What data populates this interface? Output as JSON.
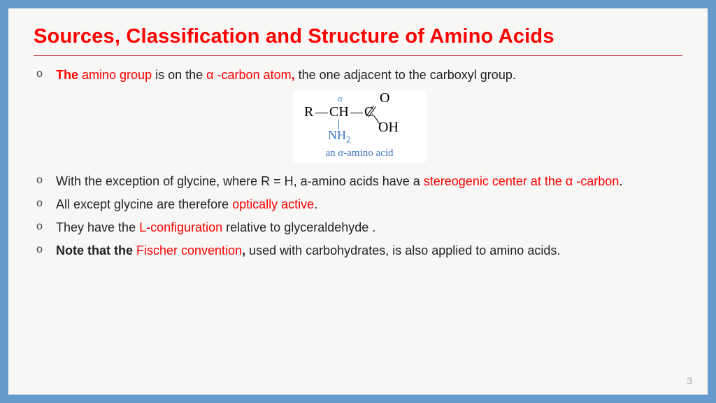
{
  "frame": {
    "border_color": "#6699cc",
    "background": "#f7f7f5"
  },
  "title": {
    "text": "Sources, Classification and Structure of Amino Acids",
    "color": "#ff0000",
    "fontsize": 29,
    "underline_color": "#c44"
  },
  "bullets": [
    {
      "runs": [
        {
          "t": "The ",
          "red": true,
          "bold": true
        },
        {
          "t": "amino group",
          "red": true
        },
        {
          "t": " is on the ",
          "red": false
        },
        {
          "t": "α -carbon atom",
          "red": true
        },
        {
          "t": ",",
          "red": true,
          "bold": true
        },
        {
          "t": " the one adjacent to the carboxyl group.",
          "red": false
        }
      ],
      "followed_by_diagram": true
    },
    {
      "runs": [
        {
          "t": "With the exception of glycine, where R = H, a-amino acids have a ",
          "red": false
        },
        {
          "t": "stereogenic center at the α -carbon",
          "red": true
        },
        {
          "t": ".",
          "red": false
        }
      ]
    },
    {
      "runs": [
        {
          "t": "All except glycine are therefore ",
          "red": false
        },
        {
          "t": "optically active",
          "red": true
        },
        {
          "t": ".",
          "red": false
        }
      ]
    },
    {
      "runs": [
        {
          "t": "They have the ",
          "red": false
        },
        {
          "t": "L-configuration",
          "red": true
        },
        {
          "t": " relative to glyceraldehyde .",
          "red": false
        }
      ]
    },
    {
      "runs": [
        {
          "t": "Note that the ",
          "red": false,
          "bold": true
        },
        {
          "t": "Fischer convention",
          "red": true
        },
        {
          "t": ",",
          "red": false,
          "bold": true
        },
        {
          "t": " used with carbohydrates, is also applied to amino acids.",
          "red": false
        }
      ]
    }
  ],
  "diagram": {
    "background": "#ffffff",
    "labels": {
      "R": "R",
      "CH": "CH",
      "C": "C",
      "O": "O",
      "OH": "OH",
      "NH2": "NH₂",
      "alpha": "α"
    },
    "caption": "an α-amino acid",
    "accent_color": "#4178c4"
  },
  "page_number": "3"
}
